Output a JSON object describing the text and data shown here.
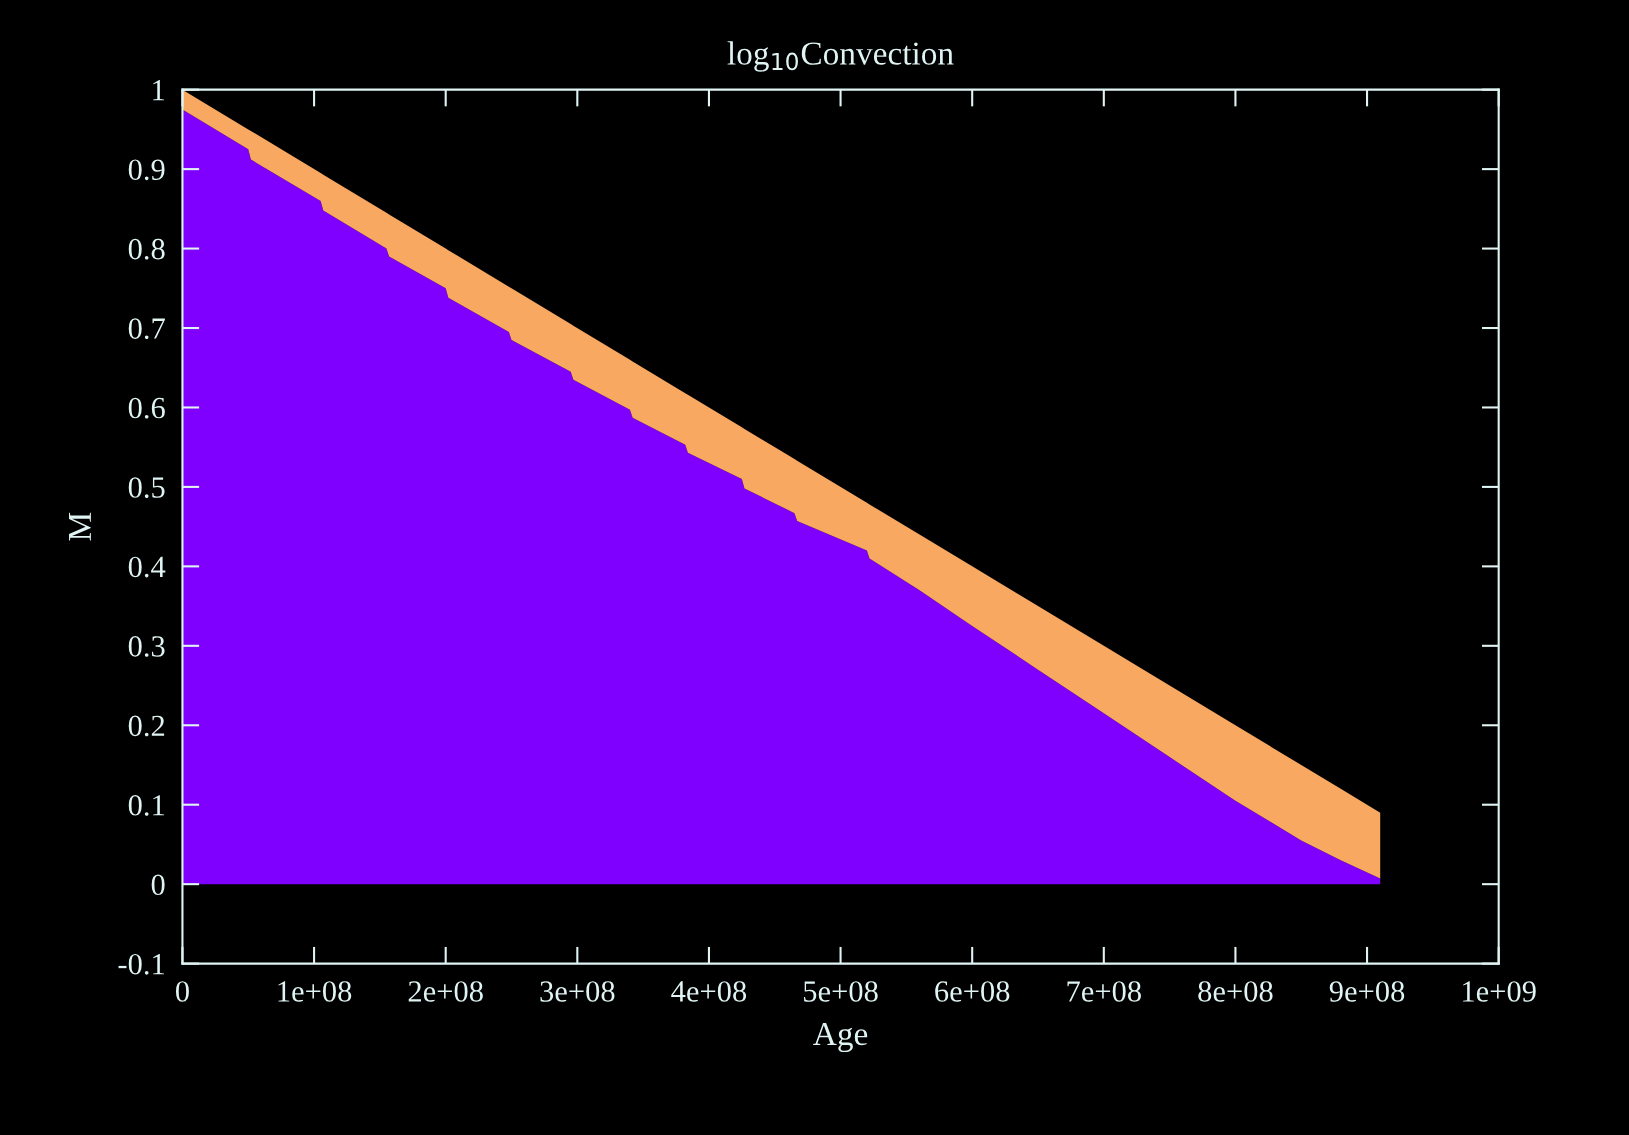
{
  "chart_data": {
    "type": "area",
    "title": "log$_{10}$Convection",
    "xlabel": "Age",
    "ylabel": "M",
    "stacked": true,
    "x": [
      0,
      50000000,
      52000000,
      105000000,
      107000000,
      155000000,
      157000000,
      200000000,
      202000000,
      248000000,
      250000000,
      295000000,
      297000000,
      340000000,
      342000000,
      382000000,
      384000000,
      425000000,
      427000000,
      465000000,
      467000000,
      520000000,
      522000000,
      560000000,
      600000000,
      650000000,
      700000000,
      750000000,
      800000000,
      850000000,
      880000000,
      910000000
    ],
    "series": [
      {
        "color": "#7f00ff",
        "values": [
          0.975,
          0.925,
          0.912,
          0.86,
          0.848,
          0.8,
          0.79,
          0.75,
          0.738,
          0.695,
          0.685,
          0.645,
          0.635,
          0.597,
          0.587,
          0.553,
          0.543,
          0.51,
          0.498,
          0.467,
          0.457,
          0.42,
          0.41,
          0.37,
          0.325,
          0.27,
          0.215,
          0.16,
          0.105,
          0.055,
          0.03,
          0.007
        ]
      },
      {
        "color": "#f8a860",
        "values": [
          0.025,
          0.025,
          0.036,
          0.035,
          0.045,
          0.045,
          0.053,
          0.05,
          0.06,
          0.057,
          0.065,
          0.06,
          0.068,
          0.063,
          0.071,
          0.065,
          0.073,
          0.065,
          0.075,
          0.068,
          0.076,
          0.06,
          0.068,
          0.07,
          0.075,
          0.08,
          0.085,
          0.09,
          0.095,
          0.095,
          0.09,
          0.083
        ]
      }
    ],
    "xlim": [
      0,
      1000000000
    ],
    "xticks": [
      0,
      {
        "value": 100000000,
        "label": "1e+08"
      },
      {
        "value": 200000000,
        "label": "2e+08"
      },
      {
        "value": 300000000,
        "label": "3e+08"
      },
      {
        "value": 400000000,
        "label": "4e+08"
      },
      {
        "value": 500000000,
        "label": "5e+08"
      },
      {
        "value": 600000000,
        "label": "6e+08"
      },
      {
        "value": 700000000,
        "label": "7e+08"
      },
      {
        "value": 800000000,
        "label": "8e+08"
      },
      {
        "value": 900000000,
        "label": "9e+08"
      },
      {
        "value": 1000000000,
        "label": "1e+09"
      }
    ],
    "ylim": [
      -0.1,
      1
    ],
    "yticks": [
      {
        "value": -0.1,
        "label": "-0.1"
      },
      0,
      0.1,
      0.2,
      0.3,
      0.4,
      0.5,
      0.6,
      0.7,
      0.8,
      0.9,
      1
    ],
    "grid": false,
    "legend": false
  }
}
